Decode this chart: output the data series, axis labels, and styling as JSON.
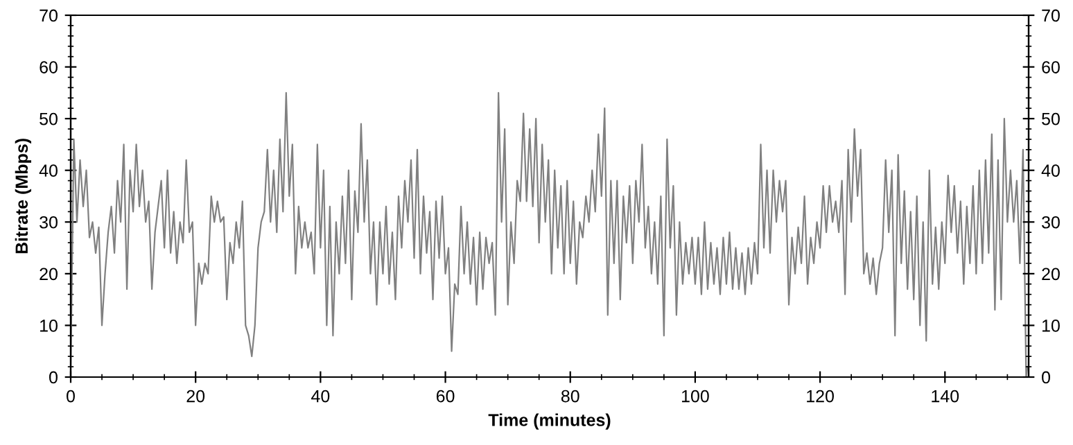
{
  "chart_data": {
    "type": "line",
    "xlabel": "Time (minutes)",
    "ylabel": "Bitrate (Mbps)",
    "xlim": [
      0,
      153.4
    ],
    "xticks": [
      0,
      20,
      40,
      60,
      80,
      100,
      120,
      140
    ],
    "ylim": [
      0,
      70
    ],
    "yticks": [
      0,
      10,
      20,
      30,
      40,
      50,
      60,
      70
    ],
    "y2lim": [
      0,
      70
    ],
    "y2ticks": [
      0,
      10,
      20,
      30,
      40,
      50,
      60,
      70
    ],
    "grid": false,
    "marker": "none",
    "line_style": "solid",
    "series": [
      {
        "color": "#808080",
        "x": [
          0,
          0.5,
          1,
          1.5,
          2,
          2.5,
          3,
          3.5,
          4,
          4.5,
          5,
          5.5,
          6,
          6.5,
          7,
          7.5,
          8,
          8.5,
          9,
          9.5,
          10,
          10.5,
          11,
          11.5,
          12,
          12.5,
          13,
          13.5,
          14,
          14.5,
          15,
          15.5,
          16,
          16.5,
          17,
          17.5,
          18,
          18.5,
          19,
          19.5,
          20,
          20.5,
          21,
          21.5,
          22,
          22.5,
          23,
          23.5,
          24,
          24.5,
          25,
          25.5,
          26,
          26.5,
          27,
          27.5,
          28,
          28.5,
          29,
          29.5,
          30,
          30.5,
          31,
          31.5,
          32,
          32.5,
          33,
          33.5,
          34,
          34.5,
          35,
          35.5,
          36,
          36.5,
          37,
          37.5,
          38,
          38.5,
          39,
          39.5,
          40,
          40.5,
          41,
          41.5,
          42,
          42.5,
          43,
          43.5,
          44,
          44.5,
          45,
          45.5,
          46,
          46.5,
          47,
          47.5,
          48,
          48.5,
          49,
          49.5,
          50,
          50.5,
          51,
          51.5,
          52,
          52.5,
          53,
          53.5,
          54,
          54.5,
          55,
          55.5,
          56,
          56.5,
          57,
          57.5,
          58,
          58.5,
          59,
          59.5,
          60,
          60.5,
          61,
          61.5,
          62,
          62.5,
          63,
          63.5,
          64,
          64.5,
          65,
          65.5,
          66,
          66.5,
          67,
          67.5,
          68,
          68.5,
          69,
          69.5,
          70,
          70.5,
          71,
          71.5,
          72,
          72.5,
          73,
          73.5,
          74,
          74.5,
          75,
          75.5,
          76,
          76.5,
          77,
          77.5,
          78,
          78.5,
          79,
          79.5,
          80,
          80.5,
          81,
          81.5,
          82,
          82.5,
          83,
          83.5,
          84,
          84.5,
          85,
          85.5,
          86,
          86.5,
          87,
          87.5,
          88,
          88.5,
          89,
          89.5,
          90,
          90.5,
          91,
          91.5,
          92,
          92.5,
          93,
          93.5,
          94,
          94.5,
          95,
          95.5,
          96,
          96.5,
          97,
          97.5,
          98,
          98.5,
          99,
          99.5,
          100,
          100.5,
          101,
          101.5,
          102,
          102.5,
          103,
          103.5,
          104,
          104.5,
          105,
          105.5,
          106,
          106.5,
          107,
          107.5,
          108,
          108.5,
          109,
          109.5,
          110,
          110.5,
          111,
          111.5,
          112,
          112.5,
          113,
          113.5,
          114,
          114.5,
          115,
          115.5,
          116,
          116.5,
          117,
          117.5,
          118,
          118.5,
          119,
          119.5,
          120,
          120.5,
          121,
          121.5,
          122,
          122.5,
          123,
          123.5,
          124,
          124.5,
          125,
          125.5,
          126,
          126.5,
          127,
          127.5,
          128,
          128.5,
          129,
          129.5,
          130,
          130.5,
          131,
          131.5,
          132,
          132.5,
          133,
          133.5,
          134,
          134.5,
          135,
          135.5,
          136,
          136.5,
          137,
          137.5,
          138,
          138.5,
          139,
          139.5,
          140,
          140.5,
          141,
          141.5,
          142,
          142.5,
          143,
          143.5,
          144,
          144.5,
          145,
          145.5,
          146,
          146.5,
          147,
          147.5,
          148,
          148.5,
          149,
          149.5,
          150,
          150.5,
          151,
          151.5,
          152,
          152.5,
          153,
          153.2
        ],
        "values": [
          2,
          46,
          30,
          42,
          33,
          40,
          27,
          30,
          24,
          29,
          10,
          20,
          28,
          33,
          24,
          38,
          30,
          45,
          17,
          40,
          32,
          45,
          33,
          40,
          30,
          34,
          17,
          28,
          33,
          38,
          25,
          40,
          24,
          32,
          22,
          30,
          26,
          42,
          28,
          30,
          10,
          22,
          18,
          22,
          20,
          35,
          30,
          34,
          30,
          31,
          15,
          26,
          22,
          30,
          25,
          34,
          10,
          8,
          4,
          10,
          25,
          30,
          32,
          44,
          30,
          40,
          28,
          46,
          32,
          55,
          35,
          45,
          20,
          33,
          25,
          30,
          25,
          28,
          20,
          45,
          25,
          40,
          10,
          33,
          8,
          30,
          20,
          35,
          22,
          40,
          15,
          36,
          28,
          49,
          30,
          42,
          20,
          30,
          14,
          30,
          20,
          33,
          18,
          28,
          15,
          35,
          25,
          38,
          30,
          42,
          23,
          44,
          20,
          35,
          24,
          32,
          15,
          34,
          23,
          35,
          20,
          25,
          5,
          18,
          16,
          33,
          20,
          30,
          18,
          27,
          14,
          28,
          17,
          27,
          22,
          26,
          12,
          55,
          30,
          48,
          14,
          30,
          22,
          38,
          34,
          51,
          34,
          48,
          33,
          50,
          26,
          45,
          30,
          42,
          20,
          40,
          25,
          37,
          20,
          38,
          22,
          34,
          18,
          30,
          27,
          35,
          30,
          40,
          32,
          47,
          35,
          52,
          12,
          38,
          22,
          38,
          15,
          35,
          26,
          37,
          22,
          38,
          30,
          45,
          25,
          33,
          20,
          30,
          18,
          35,
          8,
          46,
          25,
          37,
          12,
          30,
          18,
          26,
          20,
          27,
          18,
          27,
          16,
          30,
          17,
          26,
          18,
          25,
          16,
          27,
          18,
          28,
          17,
          25,
          17,
          24,
          16,
          25,
          18,
          26,
          20,
          45,
          25,
          40,
          24,
          40,
          30,
          38,
          32,
          38,
          14,
          27,
          20,
          29,
          22,
          35,
          18,
          27,
          22,
          30,
          25,
          37,
          28,
          37,
          30,
          34,
          28,
          38,
          16,
          44,
          30,
          48,
          35,
          44,
          20,
          24,
          18,
          23,
          16,
          22,
          25,
          42,
          28,
          40,
          8,
          43,
          22,
          36,
          17,
          32,
          15,
          35,
          10,
          30,
          7,
          40,
          18,
          29,
          17,
          30,
          22,
          39,
          28,
          37,
          24,
          34,
          18,
          33,
          22,
          37,
          20,
          40,
          22,
          42,
          24,
          47,
          13,
          42,
          15,
          50,
          30,
          40,
          30,
          38,
          22,
          44,
          0,
          2
        ]
      }
    ]
  }
}
